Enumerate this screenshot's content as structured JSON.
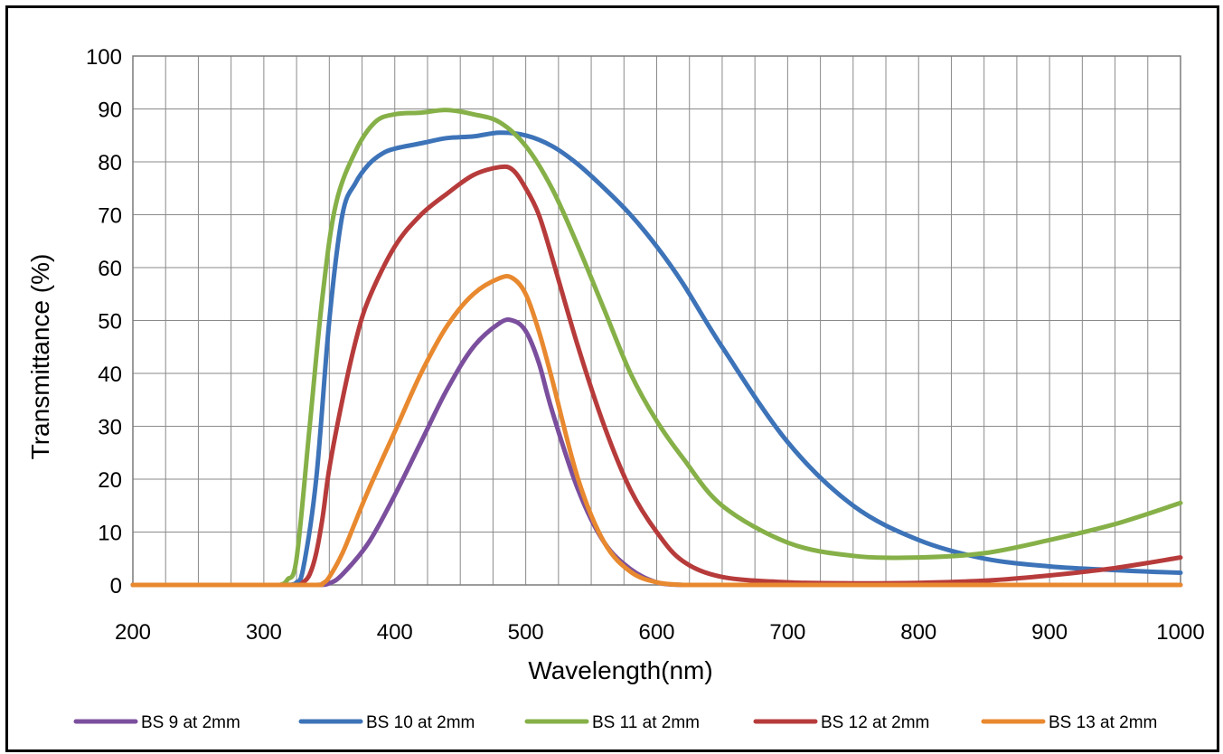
{
  "chart_data": {
    "type": "line",
    "title": "",
    "xlabel": "Wavelength(nm)",
    "ylabel": "Transmittance (%)",
    "xlim": [
      200,
      1000
    ],
    "ylim": [
      0,
      100
    ],
    "x_ticks": [
      200,
      300,
      400,
      500,
      600,
      700,
      800,
      900,
      1000
    ],
    "y_ticks": [
      0,
      10,
      20,
      30,
      40,
      50,
      60,
      70,
      80,
      90,
      100
    ],
    "grid": true,
    "minor_x_grid": 25,
    "legend_position": "bottom",
    "series": [
      {
        "name": "BS 9 at 2mm",
        "color": "#7b4f9d",
        "x": [
          200,
          300,
          340,
          350,
          360,
          380,
          400,
          420,
          440,
          460,
          480,
          490,
          500,
          510,
          520,
          540,
          560,
          580,
          600,
          620,
          640,
          700,
          800,
          900,
          1000
        ],
        "y": [
          0,
          0,
          0,
          0.3,
          2,
          8,
          17,
          27,
          37,
          45,
          49.5,
          50,
          48,
          42,
          33,
          18,
          8,
          3,
          0.5,
          0,
          0,
          0,
          0,
          0,
          0
        ]
      },
      {
        "name": "BS 10 at 2mm",
        "color": "#3d73b8",
        "x": [
          200,
          300,
          318,
          325,
          330,
          340,
          350,
          360,
          370,
          380,
          390,
          400,
          420,
          440,
          460,
          480,
          500,
          520,
          540,
          560,
          580,
          600,
          620,
          650,
          700,
          750,
          800,
          850,
          900,
          950,
          1000
        ],
        "y": [
          0,
          0,
          0,
          0.5,
          3,
          20,
          50,
          70,
          76,
          79.5,
          81.5,
          82.5,
          83.5,
          84.5,
          84.8,
          85.5,
          85,
          83,
          79.5,
          75,
          70,
          64,
          57,
          45,
          27,
          15,
          8.5,
          5,
          3.5,
          2.8,
          2.3
        ]
      },
      {
        "name": "BS 11 at 2mm",
        "color": "#86b048",
        "x": [
          200,
          300,
          312,
          318,
          325,
          335,
          345,
          355,
          370,
          385,
          400,
          420,
          440,
          460,
          480,
          500,
          520,
          540,
          560,
          580,
          600,
          620,
          650,
          700,
          750,
          800,
          850,
          900,
          950,
          1000
        ],
        "y": [
          0,
          0,
          0,
          1,
          5,
          30,
          55,
          72,
          82,
          87.5,
          89,
          89.3,
          89.8,
          89,
          87.5,
          83,
          75,
          64,
          52,
          40,
          31,
          24,
          15,
          8,
          5.5,
          5.2,
          6,
          8.5,
          11.5,
          15.5
        ]
      },
      {
        "name": "BS 12 at 2mm",
        "color": "#b73b3b",
        "x": [
          200,
          300,
          325,
          330,
          335,
          340,
          345,
          350,
          360,
          370,
          380,
          400,
          420,
          440,
          460,
          480,
          490,
          500,
          510,
          520,
          540,
          560,
          580,
          600,
          620,
          650,
          700,
          750,
          800,
          850,
          900,
          950,
          1000
        ],
        "y": [
          0,
          0,
          0,
          0.5,
          2,
          6,
          13,
          22,
          35,
          46,
          54,
          64,
          70,
          74,
          77.5,
          79,
          78.5,
          75,
          70,
          62,
          45,
          30,
          18,
          10,
          4.5,
          1.5,
          0.5,
          0.3,
          0.4,
          0.8,
          1.8,
          3.2,
          5.2
        ]
      },
      {
        "name": "BS 13 at 2mm",
        "color": "#e8892f",
        "x": [
          200,
          300,
          340,
          345,
          350,
          360,
          370,
          380,
          400,
          420,
          440,
          460,
          480,
          490,
          500,
          510,
          520,
          540,
          560,
          580,
          600,
          620,
          640,
          700,
          800,
          900,
          1000
        ],
        "y": [
          0,
          0,
          0,
          0.3,
          1.5,
          6,
          12,
          18,
          29,
          40,
          49,
          55,
          58,
          58,
          55,
          48,
          39,
          20,
          8,
          2.5,
          0.5,
          0,
          0,
          0,
          0,
          0,
          0
        ]
      }
    ]
  }
}
